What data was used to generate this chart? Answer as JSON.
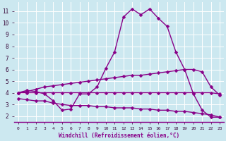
{
  "x": [
    0,
    1,
    2,
    3,
    4,
    5,
    6,
    7,
    8,
    9,
    10,
    11,
    12,
    13,
    14,
    15,
    16,
    17,
    18,
    19,
    20,
    21,
    22,
    23
  ],
  "line1": [
    4.0,
    4.2,
    4.1,
    3.9,
    3.3,
    2.5,
    2.6,
    3.9,
    3.9,
    4.5,
    6.1,
    7.5,
    10.5,
    11.2,
    10.7,
    11.2,
    10.4,
    9.7,
    7.5,
    6.0,
    3.9,
    2.5,
    1.9,
    1.9
  ],
  "line2": [
    4.0,
    4.1,
    4.3,
    4.5,
    4.6,
    4.7,
    4.8,
    4.9,
    5.0,
    5.1,
    5.2,
    5.3,
    5.4,
    5.5,
    5.5,
    5.6,
    5.7,
    5.8,
    5.9,
    6.0,
    6.0,
    5.8,
    4.5,
    3.8
  ],
  "line3": [
    4.0,
    4.0,
    4.0,
    4.0,
    4.0,
    4.0,
    4.0,
    4.0,
    4.0,
    4.0,
    4.0,
    4.0,
    4.0,
    4.0,
    4.0,
    4.0,
    4.0,
    4.0,
    4.0,
    4.0,
    4.0,
    4.0,
    4.0,
    3.9
  ],
  "line4": [
    3.5,
    3.4,
    3.3,
    3.3,
    3.1,
    3.0,
    2.9,
    2.9,
    2.9,
    2.8,
    2.8,
    2.7,
    2.7,
    2.7,
    2.6,
    2.6,
    2.5,
    2.5,
    2.4,
    2.4,
    2.3,
    2.2,
    2.1,
    1.9
  ],
  "line_color": "#880088",
  "bg_color": "#cce8f0",
  "grid_color": "#b0d8e8",
  "xlabel": "Windchill (Refroidissement éolien,°C)",
  "ylabel_ticks": [
    2,
    3,
    4,
    5,
    6,
    7,
    8,
    9,
    10,
    11
  ],
  "xtick_labels": [
    "0",
    "1",
    "2",
    "3",
    "4",
    "5",
    "6",
    "7",
    "8",
    "9",
    "10",
    "11",
    "12",
    "13",
    "14",
    "15",
    "16",
    "17",
    "18",
    "19",
    "20",
    "21",
    "22",
    "23"
  ],
  "xlim": [
    -0.5,
    23.5
  ],
  "ylim": [
    1.5,
    11.8
  ],
  "marker": "D",
  "markersize": 2.5,
  "linewidth": 1.0
}
